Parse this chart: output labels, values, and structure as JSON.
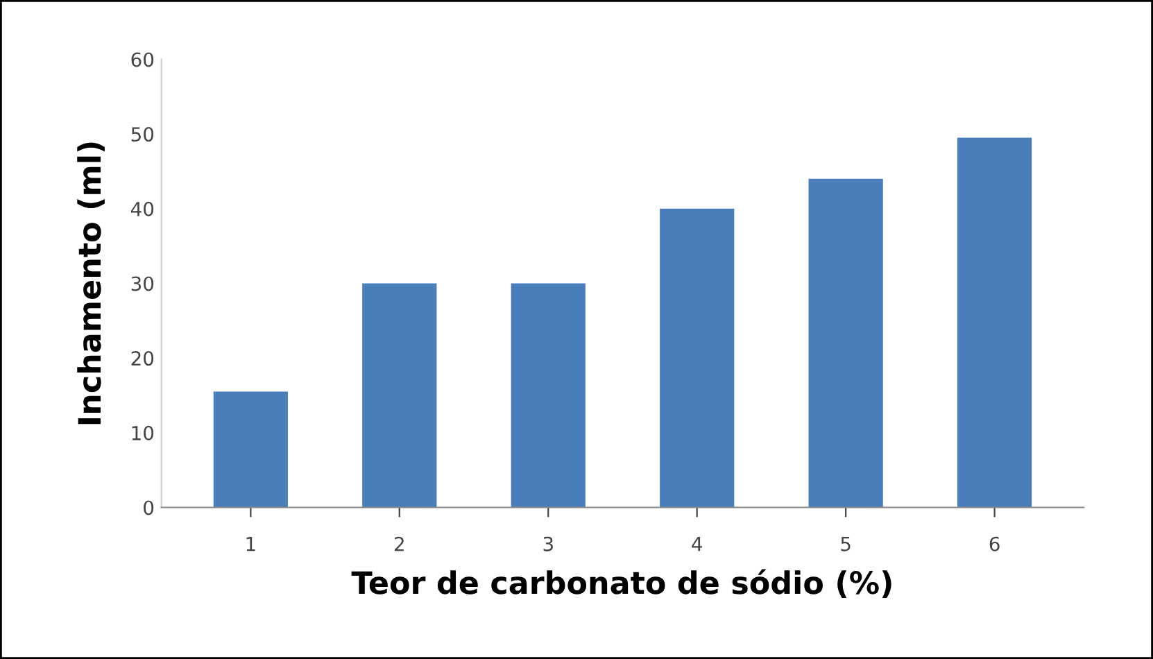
{
  "chart_data": {
    "type": "bar",
    "xlabel": "Teor de carbonato de sódio (%)",
    "ylabel": "Inchamento (ml)",
    "categories": [
      "1",
      "2",
      "3",
      "4",
      "5",
      "6"
    ],
    "values": [
      15.5,
      30,
      30,
      40,
      44,
      49.5
    ],
    "color": "#4a7ebb",
    "ylim": [
      0,
      60
    ],
    "yticks": [
      0,
      10,
      20,
      30,
      40,
      50,
      60
    ],
    "grid": false,
    "legend": false
  }
}
